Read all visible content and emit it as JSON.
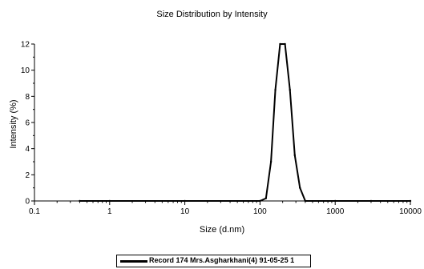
{
  "chart_data": {
    "type": "line",
    "title": "Size Distribution by Intensity",
    "xlabel": "Size (d.nm)",
    "ylabel": "Intensity (%)",
    "xscale": "log",
    "xlim": [
      0.1,
      10000
    ],
    "ylim": [
      0,
      12
    ],
    "xticks": [
      0.1,
      1,
      10,
      100,
      1000,
      10000
    ],
    "xtick_labels": [
      "0.1",
      "1",
      "10",
      "100",
      "1000",
      "10000"
    ],
    "yticks": [
      0,
      2,
      4,
      6,
      8,
      10,
      12
    ],
    "ytick_labels": [
      "0",
      "2",
      "4",
      "6",
      "8",
      "10",
      "12"
    ],
    "grid": false,
    "legend_position": "bottom-center",
    "series": [
      {
        "name": "Record 174 Mrs.Asgharkhani(4) 91-05-25 1",
        "color": "#000000",
        "x": [
          0.4,
          1,
          10,
          100,
          120,
          140,
          160,
          185,
          215,
          250,
          290,
          340,
          400,
          1000,
          3000,
          10000
        ],
        "y": [
          0,
          0,
          0,
          0,
          0.2,
          3.0,
          8.5,
          12,
          12,
          8.5,
          3.5,
          1.0,
          0,
          0,
          0,
          0
        ]
      }
    ]
  }
}
